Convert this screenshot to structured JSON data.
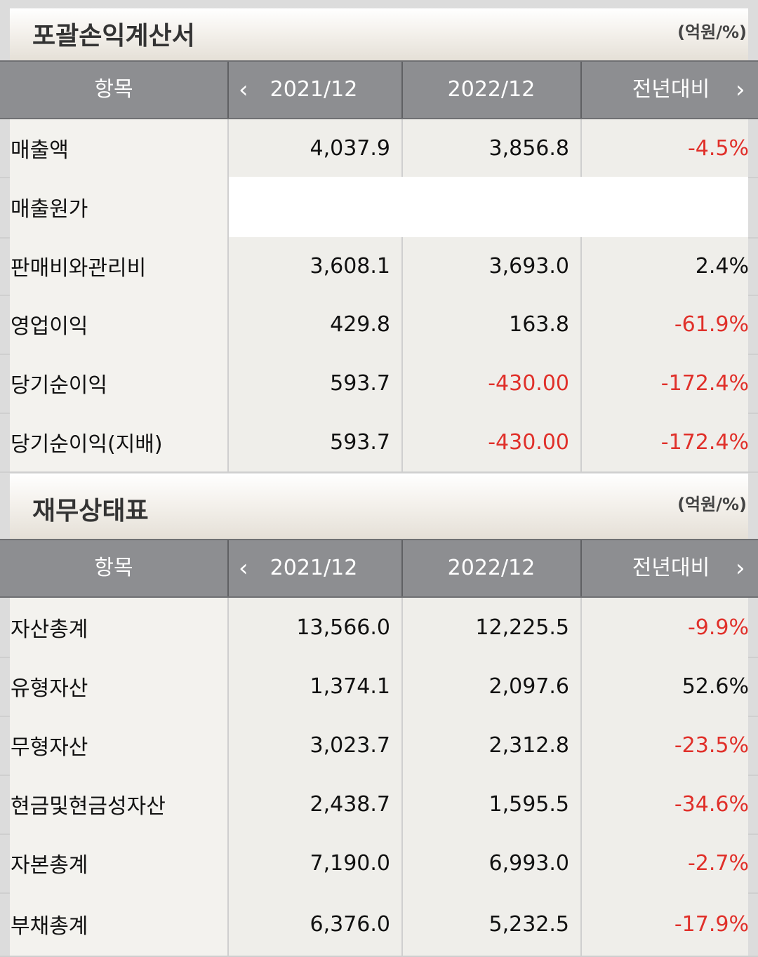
{
  "sections": [
    {
      "title": "포괄손익계산서",
      "unit": "(억원/%)",
      "header": {
        "item": "항목",
        "prev_icon": "chevron-left-icon",
        "next_icon": "chevron-right-icon",
        "col1": "2021/12",
        "col2": "2022/12",
        "col3": "전년대비"
      },
      "rows": [
        {
          "label": "매출액",
          "v1": "4,037.9",
          "v2": "3,856.8",
          "v3": "-4.5%"
        },
        {
          "label": "매출원가",
          "v1": "",
          "v2": "",
          "v3": ""
        },
        {
          "label": "판매비와관리비",
          "v1": "3,608.1",
          "v2": "3,693.0",
          "v3": "2.4%"
        },
        {
          "label": "영업이익",
          "v1": "429.8",
          "v2": "163.8",
          "v3": "-61.9%"
        },
        {
          "label": "당기순이익",
          "v1": "593.7",
          "v2": "-430.00",
          "v3": "-172.4%"
        },
        {
          "label": "당기순이익(지배)",
          "v1": "593.7",
          "v2": "-430.00",
          "v3": "-172.4%"
        }
      ]
    },
    {
      "title": "재무상태표",
      "unit": "(억원/%)",
      "header": {
        "item": "항목",
        "prev_icon": "chevron-left-icon",
        "next_icon": "chevron-right-icon",
        "col1": "2021/12",
        "col2": "2022/12",
        "col3": "전년대비"
      },
      "rows": [
        {
          "label": "자산총계",
          "v1": "13,566.0",
          "v2": "12,225.5",
          "v3": "-9.9%"
        },
        {
          "label": "유형자산",
          "v1": "1,374.1",
          "v2": "2,097.6",
          "v3": "52.6%"
        },
        {
          "label": "무형자산",
          "v1": "3,023.7",
          "v2": "2,312.8",
          "v3": "-23.5%"
        },
        {
          "label": "현금및현금성자산",
          "v1": "2,438.7",
          "v2": "1,595.5",
          "v3": "-34.6%"
        },
        {
          "label": "자본총계",
          "v1": "7,190.0",
          "v2": "6,993.0",
          "v3": "-2.7%"
        },
        {
          "label": "부채총계",
          "v1": "6,376.0",
          "v2": "5,232.5",
          "v3": "-17.9%"
        }
      ]
    }
  ],
  "colors": {
    "negative": "#e0302a",
    "header_bg": "#8d8e91",
    "text": "#111111"
  }
}
